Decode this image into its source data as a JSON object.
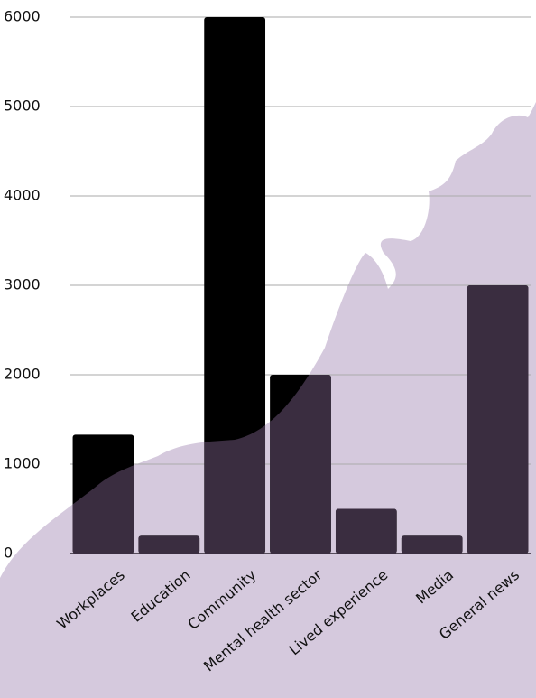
{
  "chart_data": {
    "type": "bar",
    "categories": [
      "Workplaces",
      "Education",
      "Community",
      "Mental health sector",
      "Lived experience",
      "Media",
      "General news"
    ],
    "values": [
      1330,
      200,
      6000,
      2000,
      500,
      200,
      3000
    ],
    "color": "#000000",
    "ylim": [
      0,
      6000
    ],
    "yticks": [
      0,
      1000,
      2000,
      3000,
      4000,
      5000,
      6000
    ],
    "grid": true
  }
}
